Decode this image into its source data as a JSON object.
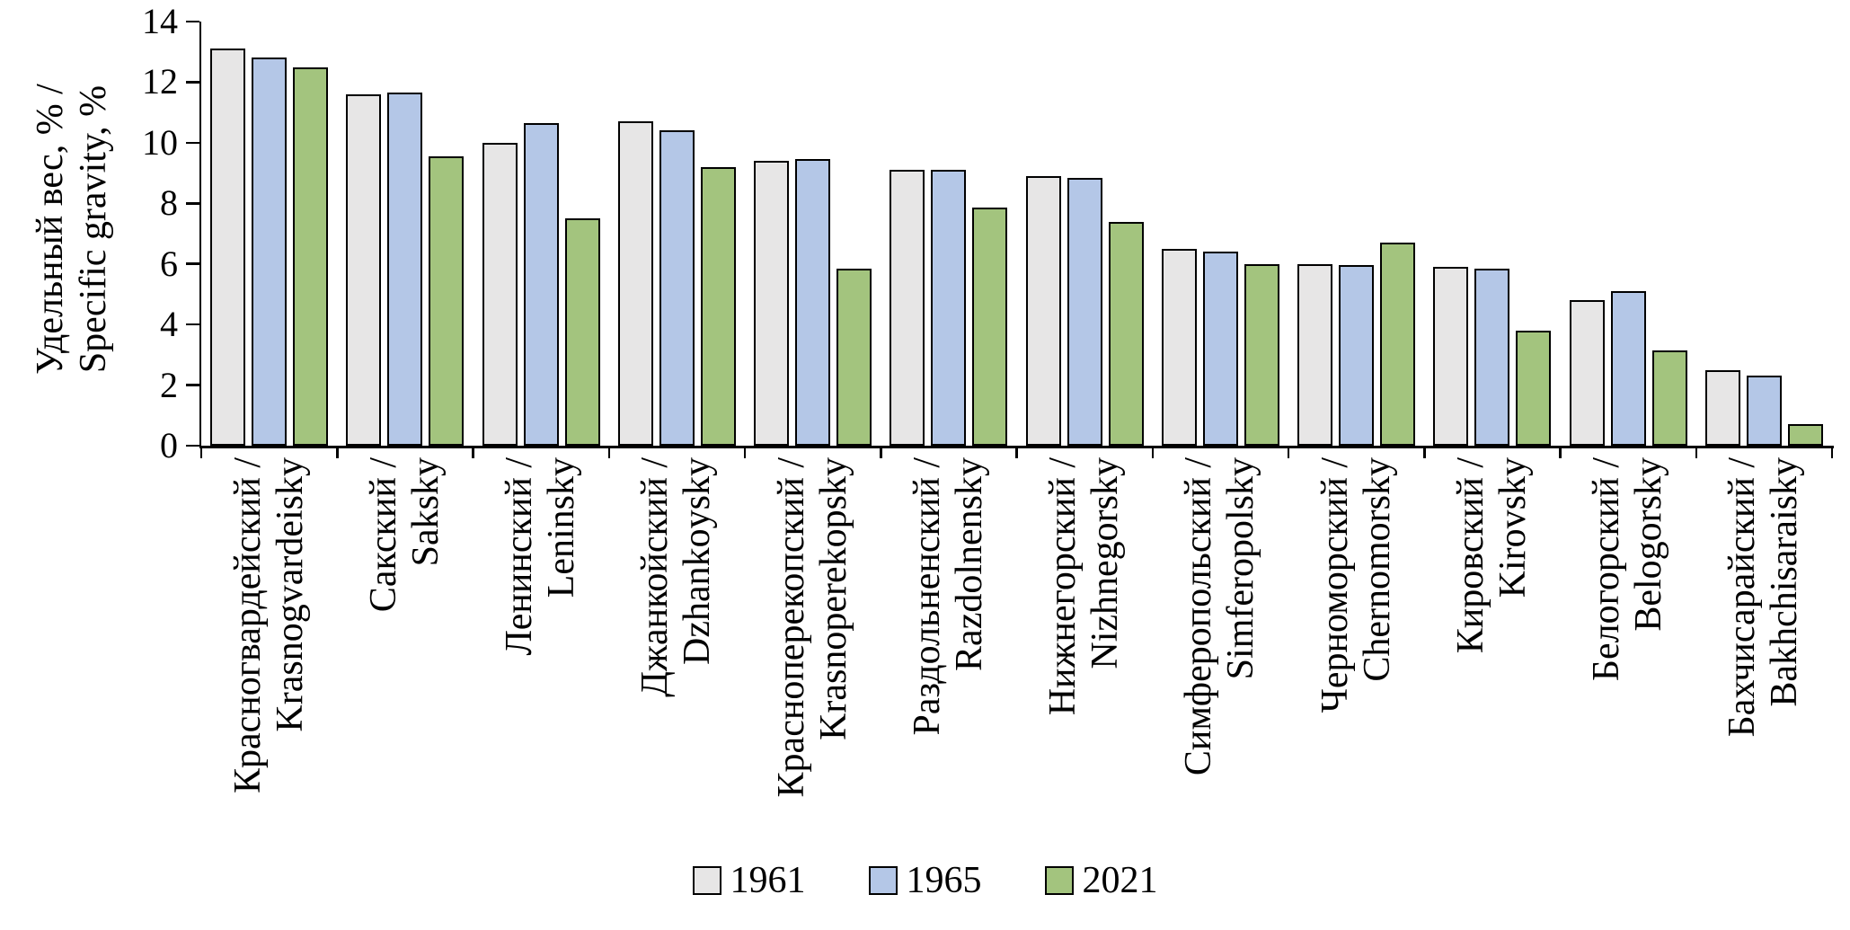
{
  "chart_data": {
    "type": "bar",
    "title": "",
    "ylabel": "Удельный вес, % / Specific gravity, %",
    "ylabel_lines": [
      "Удельный вес, % /",
      "Specific gravity, %"
    ],
    "ylim": [
      0,
      14
    ],
    "yticks": [
      0,
      2,
      4,
      6,
      8,
      10,
      12,
      14
    ],
    "grid": false,
    "legend_position": "bottom",
    "background_color": "#ffffff",
    "axis_color": "#000000",
    "bar_border_color": "#000000",
    "categories": [
      {
        "ru": "Красногвардейский /",
        "en": "Krasnogvardeisky"
      },
      {
        "ru": "Сакский /",
        "en": "Saksky"
      },
      {
        "ru": "Ленинский /",
        "en": "Leninsky"
      },
      {
        "ru": "Джанкойский /",
        "en": "Dzhankoysky"
      },
      {
        "ru": "Красноперекопский /",
        "en": "Krasnoperekopsky"
      },
      {
        "ru": "Раздольненский /",
        "en": "Razdolnensky"
      },
      {
        "ru": "Нижнегорский /",
        "en": "Nizhnegorsky"
      },
      {
        "ru": "Симферопольский /",
        "en": "Simferopolsky"
      },
      {
        "ru": "Черноморский /",
        "en": "Chernomorsky"
      },
      {
        "ru": "Кировский /",
        "en": "Kirovsky"
      },
      {
        "ru": "Белогорский /",
        "en": "Belogorsky"
      },
      {
        "ru": "Бахчисарайский /",
        "en": "Bakhchisaraisky"
      }
    ],
    "series": [
      {
        "name": "1961",
        "color": "#e7e6e6",
        "values": [
          13.1,
          11.6,
          10.0,
          10.7,
          9.4,
          9.1,
          8.9,
          6.5,
          6.0,
          5.9,
          4.8,
          2.5
        ]
      },
      {
        "name": "1965",
        "color": "#b4c7e7",
        "values": [
          12.8,
          11.65,
          10.65,
          10.4,
          9.45,
          9.1,
          8.85,
          6.4,
          5.95,
          5.85,
          5.1,
          2.3
        ]
      },
      {
        "name": "2021",
        "color": "#a3c47e",
        "values": [
          12.5,
          9.55,
          7.5,
          9.2,
          5.85,
          7.85,
          7.4,
          6.0,
          6.7,
          3.8,
          3.15,
          0.7
        ]
      }
    ]
  }
}
